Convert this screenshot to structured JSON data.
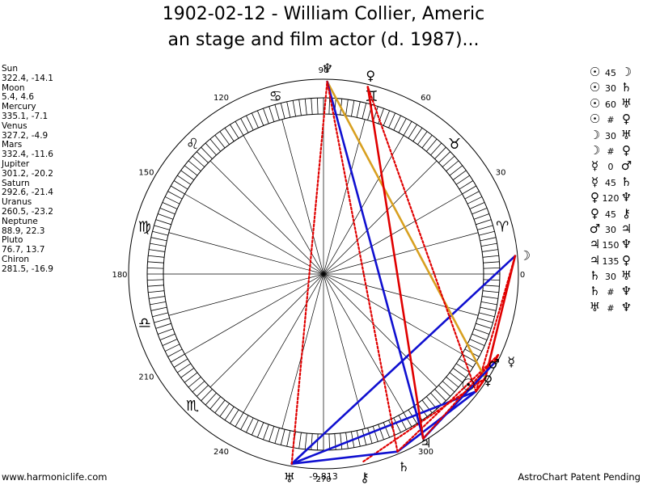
{
  "title_line1": "1902-02-12 - William Collier, Americ",
  "title_line2": "an stage and film actor (d. 1987)...",
  "planets": [
    {
      "name": "Sun",
      "coords": "322.4, -14.1"
    },
    {
      "name": "Moon",
      "coords": "5.4, 4.6"
    },
    {
      "name": "Mercury",
      "coords": "335.1, -7.1"
    },
    {
      "name": "Venus",
      "coords": "327.2, -4.9"
    },
    {
      "name": "Mars",
      "coords": "332.4, -11.6"
    },
    {
      "name": "Jupiter",
      "coords": "301.2, -20.2"
    },
    {
      "name": "Saturn",
      "coords": "292.6, -21.4"
    },
    {
      "name": "Uranus",
      "coords": "260.5, -23.2"
    },
    {
      "name": "Neptune",
      "coords": "88.9, 22.3"
    },
    {
      "name": "Pluto",
      "coords": "76.7, 13.7"
    },
    {
      "name": "Chiron",
      "coords": "281.5, -16.9"
    }
  ],
  "aspects": [
    {
      "p1": "☉",
      "val": "45",
      "p2": "☽"
    },
    {
      "p1": "☉",
      "val": "30",
      "p2": "♄"
    },
    {
      "p1": "☉",
      "val": "60",
      "p2": "♅"
    },
    {
      "p1": "☉",
      "val": "#",
      "p2": "♀"
    },
    {
      "p1": "☽",
      "val": "30",
      "p2": "♅"
    },
    {
      "p1": "☽",
      "val": "#",
      "p2": "♀"
    },
    {
      "p1": "☿",
      "val": "0",
      "p2": "♂"
    },
    {
      "p1": "☿",
      "val": "45",
      "p2": "♄"
    },
    {
      "p1": "♀",
      "val": "120",
      "p2": "♆"
    },
    {
      "p1": "♀",
      "val": "45",
      "p2": "⚷"
    },
    {
      "p1": "♂",
      "val": "30",
      "p2": "♃"
    },
    {
      "p1": "♃",
      "val": "150",
      "p2": "♆"
    },
    {
      "p1": "♃",
      "val": "135",
      "p2": "♀"
    },
    {
      "p1": "♄",
      "val": "30",
      "p2": "♅"
    },
    {
      "p1": "♄",
      "val": "#",
      "p2": "♆"
    },
    {
      "p1": "♅",
      "val": "#",
      "p2": "♆"
    }
  ],
  "wheel": {
    "degree_labels": [
      {
        "deg": 0,
        "text": "0"
      },
      {
        "deg": 30,
        "text": "30"
      },
      {
        "deg": 60,
        "text": "60"
      },
      {
        "deg": 90,
        "text": "90"
      },
      {
        "deg": 120,
        "text": "120"
      },
      {
        "deg": 150,
        "text": "150"
      },
      {
        "deg": 180,
        "text": "180"
      },
      {
        "deg": 210,
        "text": "210"
      },
      {
        "deg": 240,
        "text": "240"
      },
      {
        "deg": 270,
        "text": "270"
      },
      {
        "deg": 300,
        "text": "300"
      }
    ],
    "signs": [
      {
        "deg": 15,
        "glyph": "♈"
      },
      {
        "deg": 45,
        "glyph": "♉"
      },
      {
        "deg": 75,
        "glyph": "♊"
      },
      {
        "deg": 105,
        "glyph": "♋"
      },
      {
        "deg": 135,
        "glyph": "♌"
      },
      {
        "deg": 165,
        "glyph": "♍"
      },
      {
        "deg": 195,
        "glyph": "♎"
      },
      {
        "deg": 225,
        "glyph": "♏"
      }
    ],
    "planet_glyphs": [
      {
        "name": "Sun",
        "deg": 322.4,
        "glyph": "☉"
      },
      {
        "name": "Moon",
        "deg": 5.4,
        "glyph": "☽"
      },
      {
        "name": "Mercury",
        "deg": 335.1,
        "glyph": "☿"
      },
      {
        "name": "Venus",
        "deg": 327.2,
        "glyph": "♀"
      },
      {
        "name": "Mars",
        "deg": 332.4,
        "glyph": "♂"
      },
      {
        "name": "Jupiter",
        "deg": 301.2,
        "glyph": "♃"
      },
      {
        "name": "Saturn",
        "deg": 292.6,
        "glyph": "♄"
      },
      {
        "name": "Uranus",
        "deg": 260.5,
        "glyph": "♅"
      },
      {
        "name": "Neptune",
        "deg": 88.9,
        "glyph": "♆"
      },
      {
        "name": "Pluto",
        "deg": 76.7,
        "glyph": "♀"
      },
      {
        "name": "Chiron",
        "deg": 281.5,
        "glyph": "⚷"
      }
    ],
    "aspect_lines": [
      {
        "from": 322.4,
        "to": 5.4,
        "style": "red-dotted"
      },
      {
        "from": 322.4,
        "to": 292.6,
        "style": "blue"
      },
      {
        "from": 322.4,
        "to": 260.5,
        "style": "blue"
      },
      {
        "from": 322.4,
        "to": 327.2,
        "style": "red"
      },
      {
        "from": 5.4,
        "to": 260.5,
        "style": "blue"
      },
      {
        "from": 5.4,
        "to": 327.2,
        "style": "red"
      },
      {
        "from": 335.1,
        "to": 332.4,
        "style": "red"
      },
      {
        "from": 335.1,
        "to": 292.6,
        "style": "red-dotted"
      },
      {
        "from": 327.2,
        "to": 88.9,
        "style": "orange"
      },
      {
        "from": 327.2,
        "to": 281.5,
        "style": "red-dotted"
      },
      {
        "from": 332.4,
        "to": 301.2,
        "style": "blue"
      },
      {
        "from": 301.2,
        "to": 88.9,
        "style": "blue"
      },
      {
        "from": 301.2,
        "to": 76.7,
        "style": "red"
      },
      {
        "from": 292.6,
        "to": 260.5,
        "style": "blue"
      },
      {
        "from": 292.6,
        "to": 88.9,
        "style": "red-dotted"
      },
      {
        "from": 260.5,
        "to": 88.9,
        "style": "red-dotted"
      },
      {
        "from": 322.4,
        "to": 76.7,
        "style": "red-dotted"
      },
      {
        "from": 335.1,
        "to": 301.2,
        "style": "red-dotted"
      }
    ],
    "center_value": "-9,813"
  },
  "colors": {
    "red": "#e00000",
    "blue": "#1010d0",
    "orange": "#d8a020"
  },
  "footer_left": "www.harmoniclife.com",
  "footer_right": "AstroChart Patent Pending"
}
